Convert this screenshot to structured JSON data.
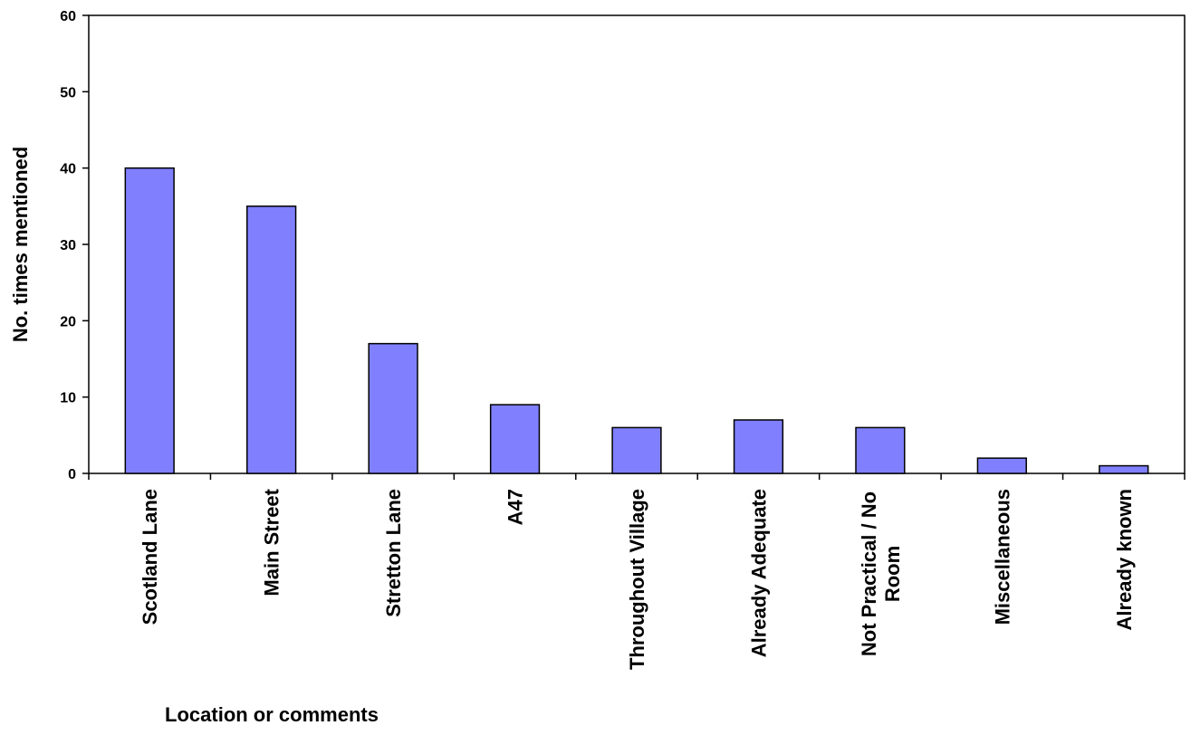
{
  "chart_data": {
    "type": "bar",
    "title": "",
    "xlabel": "Location or comments",
    "ylabel": "No. times mentioned",
    "categories": [
      "Scotland Lane",
      "Main Street",
      "Stretton Lane",
      "A47",
      "Throughout Village",
      "Already Adequate",
      "Not Practical / No Room",
      "Miscellaneous",
      "Already known"
    ],
    "values": [
      40,
      35,
      17,
      9,
      6,
      7,
      6,
      2,
      1
    ],
    "ylim": [
      0,
      60
    ],
    "yticks": [
      0,
      10,
      20,
      30,
      40,
      50,
      60
    ],
    "grid": false,
    "legend": "none",
    "colors": {
      "bar_fill": "#8080ff",
      "bar_stroke": "#000000",
      "axis": "#000000"
    }
  }
}
